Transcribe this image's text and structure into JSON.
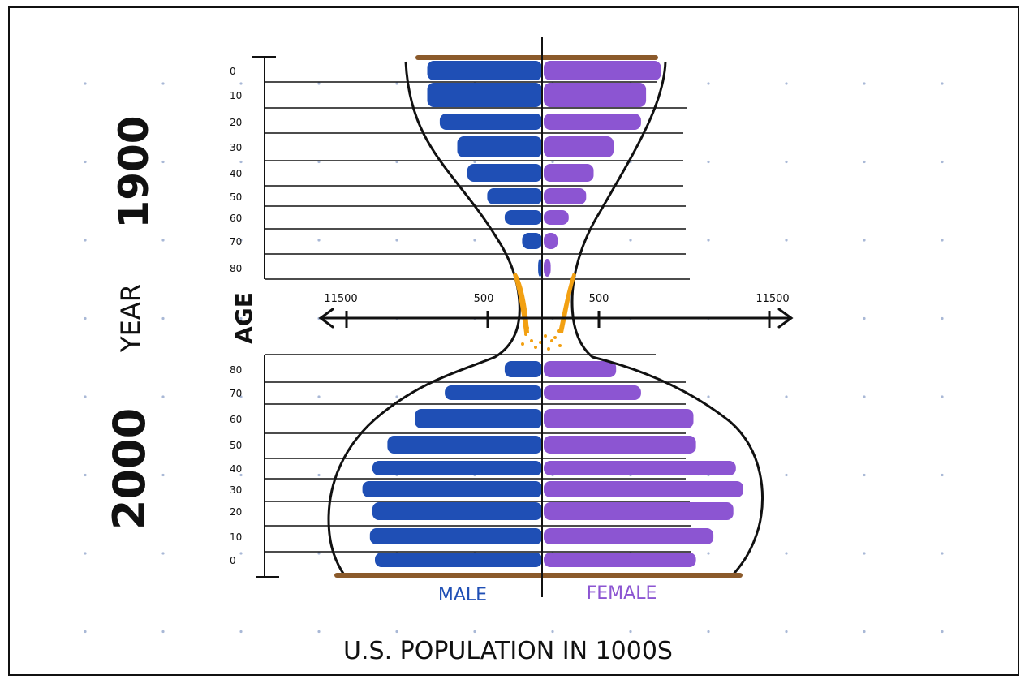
{
  "chart_data": {
    "type": "bar",
    "subtype": "mirrored population pyramid (hourglass sketch)",
    "title": "U.S. POPULATION IN 1000S",
    "ylabel": "AGE",
    "group_axis_label": "YEAR",
    "legend": {
      "male": "MALE",
      "female": "FEMALE",
      "placement": "bottom"
    },
    "x_ticks": [
      "11500",
      "500",
      "500",
      "11500"
    ],
    "colors": {
      "male": "#1f4fb5",
      "female": "#8c55d2",
      "sand": "#f2a012",
      "base": "#8b5a2b",
      "ink": "#111111"
    },
    "groups": [
      {
        "year": "1900",
        "categories": [
          "0",
          "10",
          "20",
          "30",
          "40",
          "50",
          "60",
          "70",
          "80"
        ],
        "male": [
          2.3,
          2.3,
          2.05,
          1.7,
          1.5,
          1.1,
          0.75,
          0.4,
          0.08
        ],
        "female": [
          2.35,
          2.05,
          1.95,
          1.4,
          1.0,
          0.85,
          0.5,
          0.28,
          0.14
        ]
      },
      {
        "year": "2000",
        "categories": [
          "80",
          "70",
          "60",
          "50",
          "40",
          "30",
          "20",
          "10",
          "0"
        ],
        "male": [
          0.75,
          1.95,
          2.55,
          3.1,
          3.4,
          3.6,
          3.4,
          3.45,
          3.35
        ],
        "female": [
          1.45,
          1.95,
          3.0,
          3.05,
          3.85,
          4.0,
          3.8,
          3.4,
          3.05
        ]
      }
    ]
  }
}
